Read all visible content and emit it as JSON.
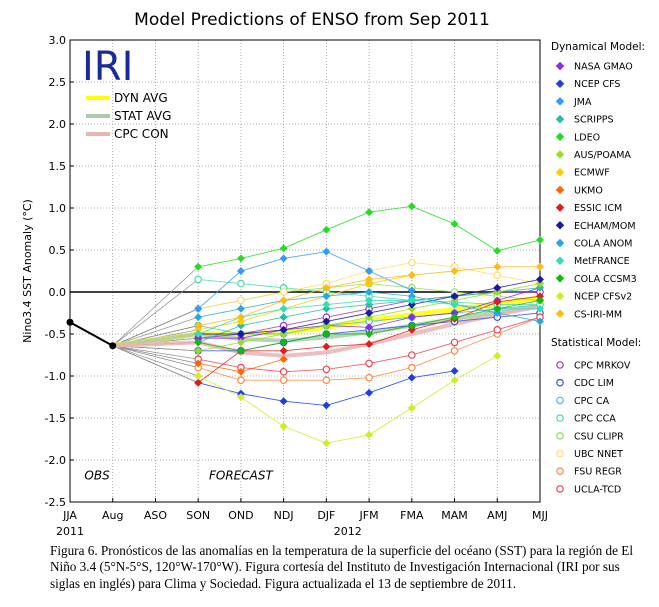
{
  "chart_data": {
    "type": "line",
    "title": "Model Predictions of ENSO from Sep 2011",
    "xlabel": "",
    "ylabel": "Nino3.4 SST Anomaly (°C)",
    "ylim": [
      -2.5,
      3.0
    ],
    "yticks": [
      "3.0",
      "2.5",
      "2.0",
      "1.5",
      "1.0",
      "0.5",
      "0.0",
      "-0.5",
      "-1.0",
      "-1.5",
      "-2.0",
      "-2.5"
    ],
    "categories": [
      "JJA",
      "Aug",
      "ASO",
      "SON",
      "OND",
      "NDJ",
      "DJF",
      "JFM",
      "FMA",
      "MAM",
      "AMJ",
      "MJJ"
    ],
    "year_labels": [
      {
        "text": "2011",
        "at": 0
      },
      {
        "text": "2012",
        "at": 6.5
      }
    ],
    "grid": true,
    "logo": "IRI",
    "annotations": {
      "obs": "OBS",
      "forecast": "FORECAST"
    },
    "observed": {
      "x": [
        0,
        1
      ],
      "values": [
        -0.36,
        -0.64
      ],
      "color": "#000000"
    },
    "avg_legend": [
      {
        "name": "DYN AVG",
        "color": "#ffff00"
      },
      {
        "name": "STAT AVG",
        "color": "#aaccaa"
      },
      {
        "name": "CPC CON",
        "color": "#e8b4b4"
      }
    ],
    "averages": [
      {
        "name": "DYN AVG",
        "values": [
          -0.5,
          -0.5,
          -0.48,
          -0.42,
          -0.34,
          -0.27,
          -0.21,
          -0.14,
          -0.07
        ]
      },
      {
        "name": "STAT AVG",
        "values": [
          -0.5,
          -0.56,
          -0.58,
          -0.54,
          -0.48,
          -0.4,
          -0.32,
          -0.24,
          -0.17
        ]
      },
      {
        "name": "CPC CON",
        "values": [
          -0.6,
          -0.72,
          -0.76,
          -0.72,
          -0.62,
          -0.5,
          -0.38,
          -0.27,
          -0.17
        ]
      }
    ],
    "legend_headers": {
      "dynamical": "Dynamical Model:",
      "statistical": "Statistical Model:"
    },
    "dynamical_models": [
      {
        "name": "NASA GMAO",
        "color": "#8b2be2",
        "values": [
          -0.55,
          -0.55,
          -0.45,
          -0.4,
          -0.42,
          -0.3,
          -0.25,
          -0.1,
          0.05
        ]
      },
      {
        "name": "NCEP CFS",
        "color": "#1a3fe6",
        "values": [
          -1.08,
          -1.21,
          -1.3,
          -1.35,
          -1.2,
          -1.02,
          -0.94,
          null,
          null
        ]
      },
      {
        "name": "JMA",
        "color": "#3399ff",
        "values": [
          -0.2,
          0.25,
          0.4,
          0.48,
          0.25,
          0.02,
          null,
          null,
          null
        ]
      },
      {
        "name": "SCRIPPS",
        "color": "#20c0a0",
        "values": [
          -0.6,
          -0.4,
          -0.3,
          -0.2,
          -0.15,
          -0.1,
          -0.05,
          0.0,
          0.05
        ]
      },
      {
        "name": "LDEO",
        "color": "#22dd22",
        "values": [
          0.3,
          0.4,
          0.52,
          0.74,
          0.95,
          1.02,
          0.81,
          0.49,
          0.62
        ]
      },
      {
        "name": "AUS/POAMA",
        "color": "#99dd22",
        "values": [
          -0.7,
          -0.6,
          -0.5,
          -0.4,
          -0.3,
          -0.2,
          -0.1,
          0.0,
          0.1
        ]
      },
      {
        "name": "ECMWF",
        "color": "#ffcc00",
        "values": [
          -0.45,
          -0.35,
          -0.2,
          -0.05,
          0.1,
          0.2,
          null,
          null,
          null
        ]
      },
      {
        "name": "UKMO",
        "color": "#ff6600",
        "values": [
          -0.85,
          -0.95,
          -0.8,
          null,
          null,
          null,
          null,
          null,
          null
        ]
      },
      {
        "name": "ESSIC ICM",
        "color": "#e61a1a",
        "values": [
          -1.08,
          -0.7,
          -0.7,
          -0.65,
          -0.62,
          -0.45,
          -0.32,
          -0.12,
          -0.05
        ]
      },
      {
        "name": "ECHAM/MOM",
        "color": "#1a1aa0",
        "values": [
          -0.5,
          -0.5,
          -0.45,
          -0.35,
          -0.25,
          -0.15,
          -0.05,
          0.05,
          0.15
        ]
      },
      {
        "name": "COLA ANOM",
        "color": "#22aadd",
        "values": [
          -0.3,
          -0.2,
          -0.1,
          -0.05,
          0.0,
          -0.05,
          -0.15,
          -0.25,
          -0.35
        ]
      },
      {
        "name": "MetFRANCE",
        "color": "#33ddbb",
        "values": [
          -0.5,
          -0.3,
          -0.2,
          -0.15,
          -0.1,
          -0.1,
          -0.15,
          -0.2,
          -0.2
        ]
      },
      {
        "name": "COLA CCSM3",
        "color": "#11bb11",
        "values": [
          -0.6,
          -0.7,
          -0.6,
          -0.5,
          -0.5,
          -0.4,
          -0.3,
          -0.2,
          -0.1
        ]
      },
      {
        "name": "NCEP CFSv2",
        "color": "#ccee22",
        "values": [
          -1.0,
          -1.25,
          -1.6,
          -1.8,
          -1.7,
          -1.38,
          -1.05,
          -0.76,
          null
        ]
      },
      {
        "name": "CS-IRI-MM",
        "color": "#ffbb11",
        "values": [
          -0.4,
          -0.3,
          -0.1,
          0.05,
          0.15,
          0.2,
          0.25,
          0.3,
          0.3
        ]
      }
    ],
    "statistical_models": [
      {
        "name": "CPC MRKOV",
        "color": "#9933cc",
        "values": [
          -0.55,
          -0.5,
          -0.4,
          -0.3,
          -0.2,
          -0.1,
          -0.05,
          0.0,
          0.0
        ]
      },
      {
        "name": "CDC LIM",
        "color": "#3355dd",
        "values": [
          -0.7,
          -0.7,
          -0.6,
          -0.5,
          -0.45,
          -0.4,
          -0.35,
          -0.3,
          -0.25
        ]
      },
      {
        "name": "CPC CA",
        "color": "#44bbee",
        "values": [
          -0.4,
          -0.5,
          -0.5,
          -0.4,
          -0.35,
          -0.3,
          -0.25,
          -0.2,
          -0.15
        ]
      },
      {
        "name": "CPC CCA",
        "color": "#44ddaa",
        "values": [
          0.15,
          0.1,
          0.05,
          0.0,
          -0.05,
          -0.1,
          -0.12,
          -0.15,
          -0.15
        ]
      },
      {
        "name": "CSU CLIPR",
        "color": "#99dd55",
        "values": [
          -0.2,
          -0.1,
          0.0,
          0.05,
          0.1,
          0.05,
          0.0,
          -0.05,
          -0.1
        ]
      },
      {
        "name": "UBC NNET",
        "color": "#ffdd66",
        "values": [
          -0.2,
          -0.1,
          0.0,
          0.1,
          0.25,
          0.35,
          0.3,
          0.2,
          0.1
        ]
      },
      {
        "name": "FSU REGR",
        "color": "#ff8844",
        "values": [
          -0.9,
          -1.05,
          -1.05,
          -1.05,
          -1.02,
          -0.9,
          -0.7,
          -0.5,
          -0.3
        ]
      },
      {
        "name": "UCLA-TCD",
        "color": "#ee4455",
        "values": [
          -0.8,
          -0.9,
          -0.95,
          -0.92,
          -0.85,
          -0.75,
          -0.6,
          -0.45,
          -0.3
        ]
      }
    ]
  },
  "caption": "Figura 6. Pronósticos de las anomalías en la temperatura de la superficie del océano (SST) para la región de El Niño 3.4 (5°N-5°S, 120°W-170°W). Figura cortesía del Instituto de Investigación Internacional (IRI por sus siglas en inglés) para Clima y Sociedad. Figura actualizada el 13 de septiembre de 2011."
}
